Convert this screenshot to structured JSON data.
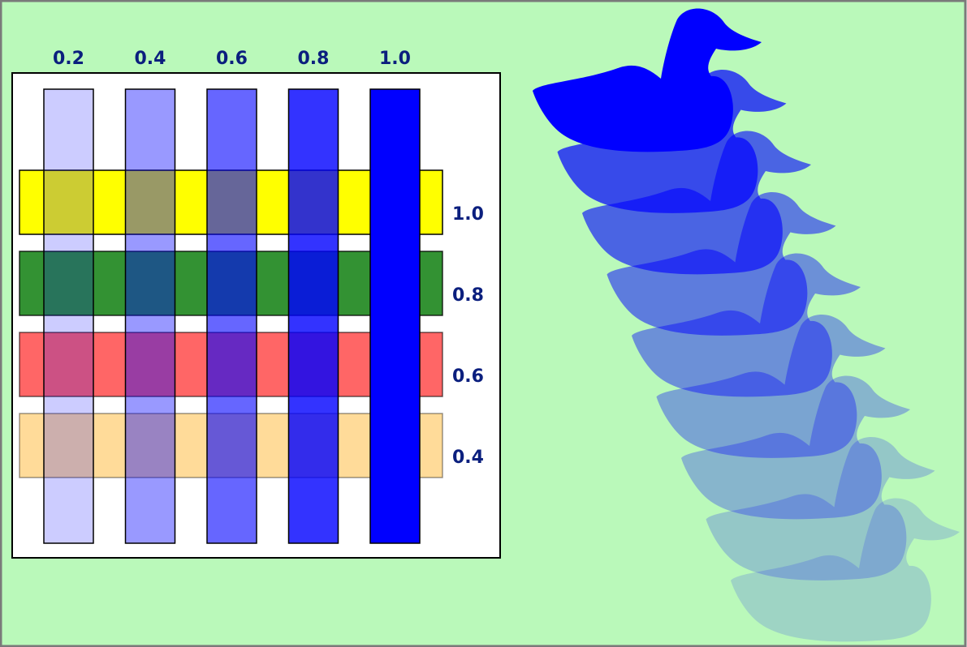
{
  "colors": {
    "page_background": "#baf9ba",
    "frame_border": "#7a7a7a",
    "panel_background": "#ffffff",
    "label_text": "#0b1f7e",
    "column_fill": "#0000ff",
    "duck_fill": "#0000ff"
  },
  "column_opacities": [
    {
      "label": "0.2",
      "value": 0.2
    },
    {
      "label": "0.4",
      "value": 0.4
    },
    {
      "label": "0.6",
      "value": 0.6
    },
    {
      "label": "0.8",
      "value": 0.8
    },
    {
      "label": "1.0",
      "value": 1.0
    }
  ],
  "row_opacities": [
    {
      "label": "1.0",
      "value": 1.0,
      "color": "#ffff00"
    },
    {
      "label": "0.8",
      "value": 0.8,
      "color": "#007700"
    },
    {
      "label": "0.6",
      "value": 0.6,
      "color": "#ff0000"
    },
    {
      "label": "0.4",
      "value": 0.4,
      "color": "#ffa500"
    }
  ],
  "duck_opacities": [
    1.0,
    0.7,
    0.6,
    0.5,
    0.42,
    0.34,
    0.27,
    0.2,
    0.15
  ]
}
